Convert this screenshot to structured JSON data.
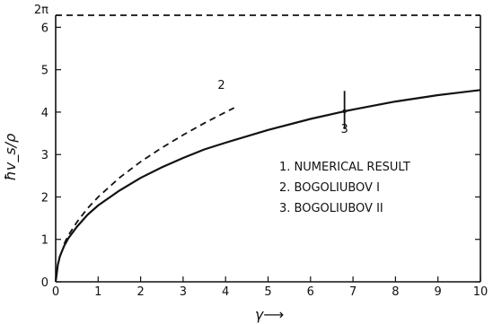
{
  "chart_data": {
    "type": "line",
    "xlabel": "γ⟶",
    "ylabel": "ħv_s/ρ",
    "xlim": [
      0,
      10
    ],
    "ylim": [
      0,
      6.2832
    ],
    "x_ticks": [
      0,
      1,
      2,
      3,
      4,
      5,
      6,
      7,
      8,
      9,
      10
    ],
    "x_tick_labels": [
      "0",
      "1",
      "2",
      "3",
      "4",
      "5",
      "6",
      "7",
      "8",
      "9",
      "10"
    ],
    "y_ticks": [
      0,
      1,
      2,
      3,
      4,
      5,
      6,
      6.2832
    ],
    "y_tick_labels": [
      "0",
      "1",
      "2",
      "3",
      "4",
      "5",
      "6",
      "2π"
    ],
    "grid": false,
    "series": [
      {
        "name": "NUMERICAL RESULT",
        "label": "",
        "style": "solid",
        "x": [
          0,
          0.05,
          0.1,
          0.2,
          0.3,
          0.5,
          0.75,
          1,
          1.5,
          2,
          2.5,
          3,
          3.5,
          4,
          5,
          6,
          6.8,
          7,
          8,
          9,
          10
        ],
        "y": [
          0,
          0.4,
          0.6,
          0.85,
          1.03,
          1.3,
          1.58,
          1.8,
          2.15,
          2.45,
          2.7,
          2.92,
          3.12,
          3.28,
          3.58,
          3.84,
          4.02,
          4.06,
          4.25,
          4.4,
          4.52
        ]
      },
      {
        "name": "BOGOLIUBOV I",
        "label": "2",
        "style": "dashed",
        "x": [
          0.2,
          0.3,
          0.5,
          0.75,
          1,
          1.5,
          2,
          2.5,
          3,
          3.5,
          4,
          4.2
        ],
        "y": [
          0.9,
          1.1,
          1.41,
          1.73,
          2.0,
          2.45,
          2.83,
          3.16,
          3.46,
          3.74,
          4.0,
          4.1
        ]
      },
      {
        "name": "BOGOLIUBOV II",
        "label": "3",
        "style": "dashed",
        "x": [
          0,
          10
        ],
        "y": [
          6.2832,
          6.2832
        ]
      }
    ],
    "marker_3": {
      "x": 6.8,
      "label": "3"
    },
    "annotations": [
      "1. NUMERICAL RESULT",
      "2. BOGOLIUBOV I",
      "3. BOGOLIUBOV II"
    ]
  }
}
